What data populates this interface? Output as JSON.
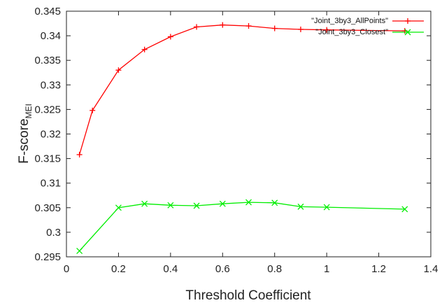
{
  "chart_data": {
    "type": "line",
    "xlabel": "Threshold Coefficient",
    "ylabel": "F-score",
    "ylabel_subscript": "MEI",
    "xlim": [
      0,
      1.4
    ],
    "ylim": [
      0.295,
      0.345
    ],
    "xticks": [
      "0",
      "0.2",
      "0.4",
      "0.6",
      "0.8",
      "1",
      "1.2",
      "1.4"
    ],
    "yticks": [
      "0.295",
      "0.3",
      "0.305",
      "0.31",
      "0.315",
      "0.32",
      "0.325",
      "0.33",
      "0.335",
      "0.34",
      "0.345"
    ],
    "grid": false,
    "legend_position": "top-right",
    "series": [
      {
        "name": "\"Joint_3by3_AllPoints\"",
        "color": "#ff0000",
        "marker": "plus",
        "points": [
          [
            0.05,
            0.3158
          ],
          [
            0.1,
            0.3248
          ],
          [
            0.2,
            0.333
          ],
          [
            0.3,
            0.3372
          ],
          [
            0.4,
            0.3398
          ],
          [
            0.5,
            0.3418
          ],
          [
            0.6,
            0.3422
          ],
          [
            0.7,
            0.342
          ],
          [
            0.8,
            0.3415
          ],
          [
            0.9,
            0.3413
          ],
          [
            1.0,
            0.3412
          ],
          [
            1.3,
            0.341
          ]
        ]
      },
      {
        "name": "\"Joint_3by3_Closest\"",
        "color": "#00ee00",
        "marker": "cross",
        "points": [
          [
            0.05,
            0.2962
          ],
          [
            0.2,
            0.305
          ],
          [
            0.3,
            0.3058
          ],
          [
            0.4,
            0.3055
          ],
          [
            0.5,
            0.3054
          ],
          [
            0.6,
            0.3058
          ],
          [
            0.7,
            0.3061
          ],
          [
            0.8,
            0.306
          ],
          [
            0.9,
            0.3052
          ],
          [
            1.0,
            0.3051
          ],
          [
            1.3,
            0.3047
          ]
        ]
      }
    ]
  }
}
